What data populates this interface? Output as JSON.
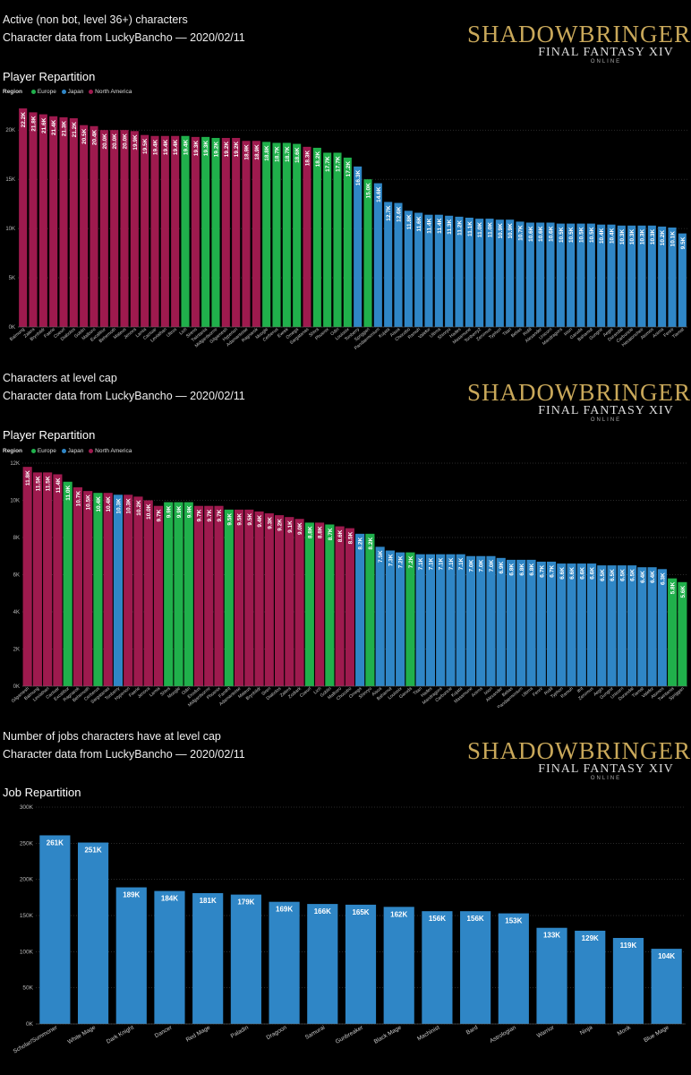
{
  "colors": {
    "Europe": "#20b04b",
    "Japan": "#2f86c6",
    "North America": "#9e1a4e",
    "bar": "#2f86c6"
  },
  "logo": {
    "line1": "SHADOWBRINGERS",
    "line2": "FINAL FANTASY XIV",
    "line3": "ONLINE"
  },
  "panel1": {
    "header1": "Active (non bot, level 36+) characters",
    "header2": "Character data from LuckyBancho — 2020/02/11",
    "chart_title": "Player Repartition",
    "legend": {
      "label": "Region",
      "items": [
        "Europe",
        "Japan",
        "North America"
      ]
    }
  },
  "panel2": {
    "header1": "Characters at level cap",
    "header2": "Character data from LuckyBancho — 2020/02/11",
    "chart_title": "Player Repartition",
    "legend": {
      "label": "Region",
      "items": [
        "Europe",
        "Japan",
        "North America"
      ]
    }
  },
  "panel3": {
    "header1": "Number of jobs characters have at level cap",
    "header2": "Character data from LuckyBancho — 2020/02/11",
    "chart_title": "Job Repartition"
  },
  "chart_data": [
    {
      "type": "bar",
      "title": "Player Repartition",
      "ylim": [
        0,
        22000
      ],
      "yticks": [
        0,
        5000,
        10000,
        15000,
        20000
      ],
      "ytick_labels": [
        "0K",
        "5K",
        "10K",
        "15K",
        "20K"
      ],
      "categories": [
        "Balmung",
        "Zalera",
        "Brynhildr",
        "Faerie",
        "Coeurl",
        "Diabolos",
        "Goblin",
        "Malboro",
        "Excalibur",
        "Behemoth",
        "Mateus",
        "Jenova",
        "Lamia",
        "Cactuar",
        "Leviathan",
        "Ultros",
        "Lich",
        "Sirens",
        "Twintania",
        "Midgardsormr",
        "Gilgamesh",
        "Hyperion",
        "Adamantoise",
        "Ragnarok",
        "Moogle",
        "Cerberus",
        "Ewrek",
        "Omega",
        "Sargatanas",
        "Shiva",
        "Phoenix",
        "Odin",
        "Louisoix",
        "Tonberry",
        "Spriggan",
        "Pandaemonium",
        "Kujata",
        "Aisoa",
        "Chocobo",
        "Ramuh",
        "Valefor",
        "Ultima",
        "Shinryu",
        "Hades",
        "Masamune",
        "Tonberry2",
        "Zeromus",
        "Typhon",
        "Titan",
        "Belias",
        "Ridill",
        "Alexander",
        "Unicorn",
        "Mandragora",
        "Ixion",
        "Garuda",
        "Bahamut",
        "Gungnir",
        "Aegis",
        "Durandal",
        "Carbuncle",
        "Hecatoncheir",
        "Atomos",
        "Anima",
        "Fenrir",
        "Tiamat"
      ],
      "values": [
        22200,
        21800,
        21600,
        21400,
        21300,
        21200,
        20500,
        20400,
        20000,
        20000,
        20000,
        19900,
        19500,
        19400,
        19400,
        19400,
        19400,
        19300,
        19300,
        19200,
        19200,
        19200,
        18900,
        18900,
        18800,
        18700,
        18700,
        18600,
        18300,
        18200,
        17700,
        17700,
        17200,
        16300,
        15000,
        14600,
        12700,
        12600,
        11800,
        11600,
        11400,
        11400,
        11300,
        11200,
        11100,
        11000,
        11000,
        10900,
        10900,
        10700,
        10600,
        10600,
        10600,
        10500,
        10500,
        10500,
        10500,
        10400,
        10400,
        10300,
        10300,
        10300,
        10300,
        10200,
        10100,
        9500
      ],
      "labels": [
        "22.2K",
        "21.8K",
        "21.6K",
        "21.4K",
        "21.3K",
        "21.2K",
        "20.5K",
        "20.4K",
        "20.0K",
        "20.0K",
        "20.0K",
        "19.9K",
        "19.5K",
        "19.4K",
        "19.4K",
        "19.4K",
        "19.4K",
        "19.3K",
        "19.3K",
        "19.2K",
        "19.2K",
        "19.2K",
        "18.9K",
        "18.9K",
        "18.8K",
        "18.7K",
        "18.7K",
        "18.6K",
        "18.3K",
        "18.2K",
        "17.7K",
        "17.7K",
        "17.2K",
        "16.3K",
        "15.0K",
        "14.6K",
        "12.7K",
        "12.6K",
        "11.8K",
        "11.6K",
        "11.4K",
        "11.4K",
        "11.3K",
        "11.2K",
        "11.1K",
        "11.0K",
        "11.0K",
        "10.9K",
        "10.9K",
        "10.7K",
        "10.6K",
        "10.6K",
        "10.6K",
        "10.5K",
        "10.5K",
        "10.5K",
        "10.5K",
        "10.4K",
        "10.4K",
        "10.3K",
        "10.3K",
        "10.3K",
        "10.3K",
        "10.2K",
        "10.1K",
        "9.5K"
      ],
      "regions": [
        "North America",
        "North America",
        "North America",
        "North America",
        "North America",
        "North America",
        "North America",
        "North America",
        "North America",
        "North America",
        "North America",
        "North America",
        "North America",
        "North America",
        "North America",
        "North America",
        "Europe",
        "North America",
        "Europe",
        "Europe",
        "North America",
        "North America",
        "North America",
        "North America",
        "Europe",
        "Europe",
        "Europe",
        "Europe",
        "North America",
        "Europe",
        "Europe",
        "Europe",
        "Europe",
        "Japan",
        "Europe",
        "Japan",
        "Japan",
        "Japan",
        "Japan",
        "Japan",
        "Japan",
        "Japan",
        "Japan",
        "Japan",
        "Japan",
        "Japan",
        "Japan",
        "Japan",
        "Japan",
        "Japan",
        "Japan",
        "Japan",
        "Japan",
        "Japan",
        "Japan",
        "Japan",
        "Japan",
        "Japan",
        "Japan",
        "Japan",
        "Japan",
        "Japan",
        "Japan",
        "Japan",
        "Japan",
        "Japan"
      ]
    },
    {
      "type": "bar",
      "title": "Player Repartition",
      "ylim": [
        0,
        12000
      ],
      "yticks": [
        0,
        2000,
        4000,
        6000,
        8000,
        10000,
        12000
      ],
      "ytick_labels": [
        "0K",
        "2K",
        "4K",
        "6K",
        "8K",
        "10K",
        "12K"
      ],
      "categories": [
        "Gilgamesh",
        "Balmung",
        "Leviathan",
        "Cactuar",
        "Excalibur",
        "Ragnarok",
        "Behemoth",
        "Cerberus",
        "Sargatanas",
        "Tonberry",
        "Hyperion",
        "Faerie",
        "Jenova",
        "Lamia",
        "Shiva",
        "Moogle",
        "Odin",
        "Exodus",
        "Midgardsormr",
        "Phoenix",
        "Famfrit",
        "Adamantoise",
        "Mateus",
        "Brynhildr",
        "Siren",
        "Diabolos",
        "Zalera",
        "Zodiark",
        "Coeurl",
        "Lich",
        "Goblin",
        "Malboro",
        "Chocobo",
        "Omega",
        "Shinryu",
        "Aisoa",
        "Bahamut",
        "Louisoix",
        "Garuda",
        "Titan",
        "Hades",
        "Mandragora",
        "Carbuncle",
        "Kujata",
        "Masamune",
        "Anima",
        "Ixion",
        "Alexander",
        "Belias",
        "Pandaemonium",
        "Ultima",
        "Fenrir",
        "Ridill",
        "Typhon",
        "Ramuh",
        "Ifrit",
        "Zeromus",
        "Aegis",
        "Gungnir",
        "Unicorn",
        "Durandal",
        "Tiamat",
        "Valefor",
        "Atomos",
        "Twintania",
        "Spriggan"
      ],
      "values": [
        11800,
        11500,
        11500,
        11400,
        11000,
        10700,
        10500,
        10400,
        10400,
        10300,
        10300,
        10200,
        10000,
        9700,
        9900,
        9900,
        9900,
        9700,
        9700,
        9700,
        9500,
        9500,
        9500,
        9400,
        9300,
        9200,
        9100,
        9000,
        8800,
        8800,
        8700,
        8600,
        8500,
        8200,
        8200,
        7500,
        7300,
        7200,
        7200,
        7100,
        7100,
        7100,
        7100,
        7100,
        7000,
        7000,
        7000,
        6900,
        6800,
        6800,
        6800,
        6700,
        6700,
        6600,
        6600,
        6600,
        6600,
        6500,
        6500,
        6500,
        6500,
        6400,
        6400,
        6300,
        5800,
        5600
      ],
      "labels": [
        "11.8K",
        "11.5K",
        "11.5K",
        "11.4K",
        "11.0K",
        "10.7K",
        "10.5K",
        "10.4K",
        "10.4K",
        "10.3K",
        "10.3K",
        "10.2K",
        "10.0K",
        "9.7K",
        "9.9K",
        "9.9K",
        "9.9K",
        "9.7K",
        "9.7K",
        "9.7K",
        "9.5K",
        "9.5K",
        "9.5K",
        "9.4K",
        "9.3K",
        "9.2K",
        "9.1K",
        "9.0K",
        "8.8K",
        "8.8K",
        "8.7K",
        "8.6K",
        "8.5K",
        "8.2K",
        "8.2K",
        "7.5K",
        "7.3K",
        "7.2K",
        "7.2K",
        "7.1K",
        "7.1K",
        "7.1K",
        "7.1K",
        "7.1K",
        "7.0K",
        "7.0K",
        "7.0K",
        "6.9K",
        "6.8K",
        "6.8K",
        "6.8K",
        "6.7K",
        "6.7K",
        "6.6K",
        "6.6K",
        "6.6K",
        "6.6K",
        "6.5K",
        "6.5K",
        "6.5K",
        "6.5K",
        "6.4K",
        "6.4K",
        "6.3K",
        "5.8K",
        "5.6K"
      ],
      "regions": [
        "North America",
        "North America",
        "North America",
        "North America",
        "Europe",
        "North America",
        "North America",
        "Europe",
        "North America",
        "Japan",
        "North America",
        "North America",
        "North America",
        "North America",
        "Europe",
        "Europe",
        "Europe",
        "North America",
        "North America",
        "North America",
        "Europe",
        "North America",
        "North America",
        "North America",
        "North America",
        "North America",
        "North America",
        "North America",
        "Europe",
        "North America",
        "Europe",
        "North America",
        "North America",
        "Japan",
        "Europe",
        "Japan",
        "Japan",
        "Japan",
        "Europe",
        "Japan",
        "Japan",
        "Japan",
        "Japan",
        "Japan",
        "Japan",
        "Japan",
        "Japan",
        "Japan",
        "Japan",
        "Japan",
        "Japan",
        "Japan",
        "Japan",
        "Japan",
        "Japan",
        "Japan",
        "Japan",
        "Japan",
        "Japan",
        "Japan",
        "Japan",
        "Japan",
        "Japan",
        "Japan",
        "Europe",
        "Europe"
      ]
    },
    {
      "type": "bar",
      "title": "Job Repartition",
      "ylim": [
        0,
        300000
      ],
      "yticks": [
        0,
        50000,
        100000,
        150000,
        200000,
        250000,
        300000
      ],
      "ytick_labels": [
        "0K",
        "50K",
        "100K",
        "150K",
        "200K",
        "250K",
        "300K"
      ],
      "categories": [
        "Scholar/Summoner",
        "White Mage",
        "Dark Knight",
        "Dancer",
        "Red Mage",
        "Paladin",
        "Dragoon",
        "Samurai",
        "Gunbreaker",
        "Black Mage",
        "Machinist",
        "Bard",
        "Astrologian",
        "Warrior",
        "Ninja",
        "Monk",
        "Blue Mage"
      ],
      "values": [
        261000,
        251000,
        189000,
        184000,
        181000,
        179000,
        169000,
        166000,
        165000,
        162000,
        156000,
        156000,
        153000,
        133000,
        129000,
        119000,
        104000
      ],
      "labels": [
        "261K",
        "251K",
        "189K",
        "184K",
        "181K",
        "179K",
        "169K",
        "166K",
        "165K",
        "162K",
        "156K",
        "156K",
        "153K",
        "133K",
        "129K",
        "119K",
        "104K"
      ]
    }
  ]
}
